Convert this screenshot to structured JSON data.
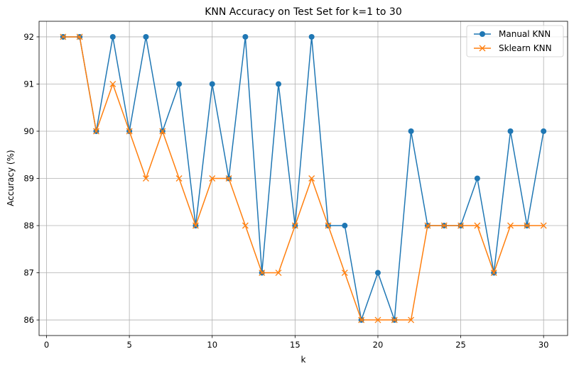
{
  "chart_data": {
    "type": "line",
    "title": "KNN Accuracy on Test Set for k=1 to 30",
    "xlabel": "k",
    "ylabel": "Accuracy (%)",
    "x": [
      1,
      2,
      3,
      4,
      5,
      6,
      7,
      8,
      9,
      10,
      11,
      12,
      13,
      14,
      15,
      16,
      17,
      18,
      19,
      20,
      21,
      22,
      23,
      24,
      25,
      26,
      27,
      28,
      29,
      30
    ],
    "xlim": [
      -0.45,
      31.45
    ],
    "ylim": [
      85.67,
      92.33
    ],
    "xticks": [
      0,
      5,
      10,
      15,
      20,
      25,
      30
    ],
    "yticks": [
      86,
      87,
      88,
      89,
      90,
      91,
      92
    ],
    "grid": true,
    "legend_position": "top-right",
    "series": [
      {
        "name": "Manual KNN",
        "marker": "circle",
        "color": "#1f77b4",
        "values": [
          92,
          92,
          90,
          92,
          90,
          92,
          90,
          91,
          88,
          91,
          89,
          92,
          87,
          91,
          88,
          92,
          88,
          88,
          86,
          87,
          86,
          90,
          88,
          88,
          88,
          89,
          87,
          90,
          88,
          90
        ]
      },
      {
        "name": "Sklearn KNN",
        "marker": "x",
        "color": "#ff7f0e",
        "values": [
          92,
          92,
          90,
          91,
          90,
          89,
          90,
          89,
          88,
          89,
          89,
          88,
          87,
          87,
          88,
          89,
          88,
          87,
          86,
          86,
          86,
          86,
          88,
          88,
          88,
          88,
          87,
          88,
          88,
          88
        ]
      }
    ]
  }
}
